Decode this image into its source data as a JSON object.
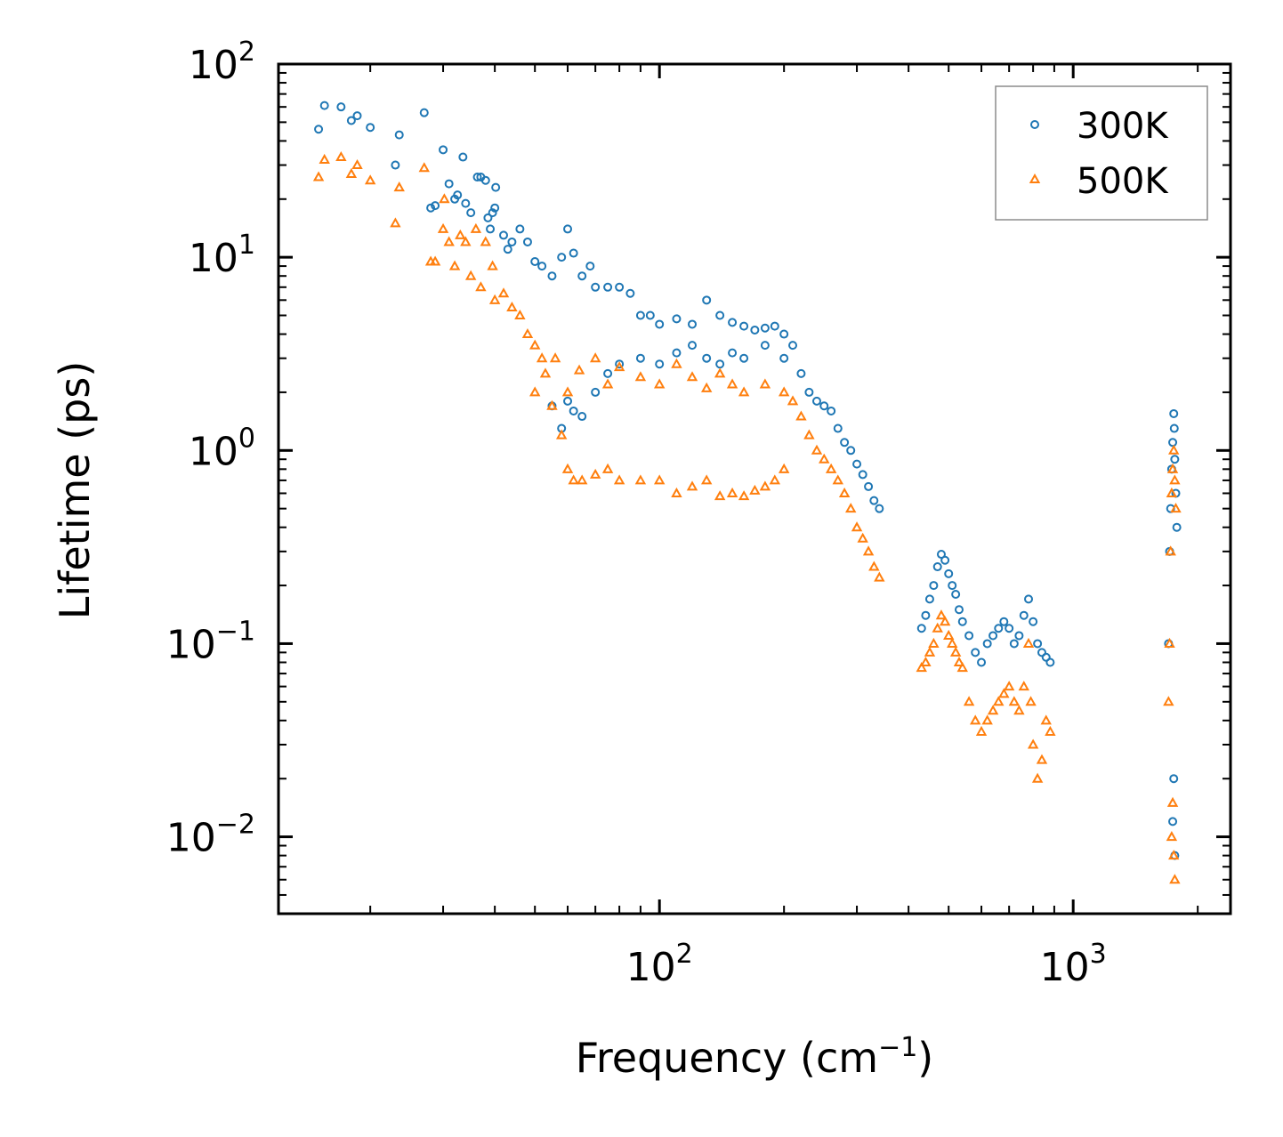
{
  "chart_data": {
    "type": "scatter",
    "title": "",
    "xlabel": {
      "main": "Frequency (cm",
      "sup": "−1",
      "tail": ")"
    },
    "ylabel": "Lifetime (ps)",
    "xscale": "log",
    "yscale": "log",
    "xlim": [
      12,
      2400
    ],
    "ylim": [
      0.004,
      100
    ],
    "legend": {
      "placement": "top-right"
    },
    "x_ticks": [
      {
        "value": 100,
        "base": "10",
        "exp": "2"
      },
      {
        "value": 1000,
        "base": "10",
        "exp": "3"
      }
    ],
    "y_ticks": [
      {
        "value": 0.01,
        "base": "10",
        "exp": "−2"
      },
      {
        "value": 0.1,
        "base": "10",
        "exp": "−1"
      },
      {
        "value": 1,
        "base": "10",
        "exp": "0"
      },
      {
        "value": 10,
        "base": "10",
        "exp": "1"
      },
      {
        "value": 100,
        "base": "10",
        "exp": "2"
      }
    ],
    "series": [
      {
        "name": "300K",
        "marker": "circle",
        "color": "#1f77b4",
        "points": [
          [
            15,
            46
          ],
          [
            15.5,
            61
          ],
          [
            17,
            60
          ],
          [
            18,
            51
          ],
          [
            18.6,
            54
          ],
          [
            20,
            47
          ],
          [
            23,
            30
          ],
          [
            23.5,
            43
          ],
          [
            27,
            56
          ],
          [
            28,
            18
          ],
          [
            28.7,
            18.5
          ],
          [
            30,
            36
          ],
          [
            31,
            24
          ],
          [
            32,
            20
          ],
          [
            32.5,
            21
          ],
          [
            33.5,
            33
          ],
          [
            34,
            19
          ],
          [
            35,
            17
          ],
          [
            36.3,
            26
          ],
          [
            37,
            26
          ],
          [
            38,
            25
          ],
          [
            38.5,
            16
          ],
          [
            39,
            14
          ],
          [
            39.5,
            17
          ],
          [
            40,
            18
          ],
          [
            40.2,
            23
          ],
          [
            42,
            13
          ],
          [
            43,
            11
          ],
          [
            44,
            12
          ],
          [
            46,
            14
          ],
          [
            48,
            12
          ],
          [
            50,
            9.5
          ],
          [
            52,
            9
          ],
          [
            55,
            8
          ],
          [
            58,
            10
          ],
          [
            60,
            14
          ],
          [
            62,
            10.5
          ],
          [
            65,
            8
          ],
          [
            68,
            9
          ],
          [
            70,
            7
          ],
          [
            75,
            7
          ],
          [
            80,
            7
          ],
          [
            85,
            6.5
          ],
          [
            90,
            5
          ],
          [
            95,
            5
          ],
          [
            100,
            4.5
          ],
          [
            110,
            4.8
          ],
          [
            120,
            4.5
          ],
          [
            130,
            6
          ],
          [
            140,
            5
          ],
          [
            150,
            4.6
          ],
          [
            160,
            4.4
          ],
          [
            170,
            4.2
          ],
          [
            180,
            4.3
          ],
          [
            190,
            4.4
          ],
          [
            200,
            4
          ],
          [
            210,
            3.5
          ],
          [
            220,
            2.5
          ],
          [
            230,
            2
          ],
          [
            240,
            1.8
          ],
          [
            250,
            1.7
          ],
          [
            260,
            1.6
          ],
          [
            270,
            1.3
          ],
          [
            280,
            1.1
          ],
          [
            290,
            1
          ],
          [
            300,
            0.85
          ],
          [
            310,
            0.75
          ],
          [
            320,
            0.65
          ],
          [
            330,
            0.55
          ],
          [
            340,
            0.5
          ],
          [
            55,
            1.7
          ],
          [
            58,
            1.3
          ],
          [
            60,
            1.8
          ],
          [
            62,
            1.6
          ],
          [
            65,
            1.5
          ],
          [
            70,
            2
          ],
          [
            75,
            2.5
          ],
          [
            80,
            2.8
          ],
          [
            90,
            3
          ],
          [
            100,
            2.8
          ],
          [
            110,
            3.2
          ],
          [
            120,
            3.5
          ],
          [
            130,
            3
          ],
          [
            140,
            2.8
          ],
          [
            150,
            3.2
          ],
          [
            160,
            3
          ],
          [
            180,
            3.5
          ],
          [
            200,
            3
          ],
          [
            430,
            0.12
          ],
          [
            440,
            0.14
          ],
          [
            450,
            0.17
          ],
          [
            460,
            0.2
          ],
          [
            470,
            0.25
          ],
          [
            480,
            0.29
          ],
          [
            490,
            0.27
          ],
          [
            500,
            0.23
          ],
          [
            510,
            0.2
          ],
          [
            520,
            0.18
          ],
          [
            530,
            0.15
          ],
          [
            540,
            0.13
          ],
          [
            560,
            0.11
          ],
          [
            580,
            0.09
          ],
          [
            600,
            0.08
          ],
          [
            620,
            0.1
          ],
          [
            640,
            0.11
          ],
          [
            660,
            0.12
          ],
          [
            680,
            0.13
          ],
          [
            700,
            0.12
          ],
          [
            720,
            0.1
          ],
          [
            740,
            0.11
          ],
          [
            760,
            0.14
          ],
          [
            780,
            0.17
          ],
          [
            800,
            0.13
          ],
          [
            820,
            0.1
          ],
          [
            840,
            0.09
          ],
          [
            860,
            0.085
          ],
          [
            880,
            0.08
          ],
          [
            1700,
            0.1
          ],
          [
            1710,
            0.3
          ],
          [
            1720,
            0.5
          ],
          [
            1730,
            0.8
          ],
          [
            1740,
            1.1
          ],
          [
            1750,
            1.55
          ],
          [
            1755,
            1.3
          ],
          [
            1760,
            0.9
          ],
          [
            1770,
            0.6
          ],
          [
            1780,
            0.4
          ],
          [
            1750,
            0.02
          ],
          [
            1740,
            0.012
          ],
          [
            1760,
            0.008
          ]
        ]
      },
      {
        "name": "500K",
        "marker": "triangle",
        "color": "#ff7f0e",
        "points": [
          [
            15,
            26
          ],
          [
            15.5,
            32
          ],
          [
            17,
            33
          ],
          [
            18,
            27
          ],
          [
            18.6,
            30
          ],
          [
            20,
            25
          ],
          [
            23,
            15
          ],
          [
            23.5,
            23
          ],
          [
            27,
            29
          ],
          [
            28,
            9.5
          ],
          [
            28.7,
            9.5
          ],
          [
            30,
            14
          ],
          [
            30.2,
            20
          ],
          [
            31,
            12
          ],
          [
            32,
            9
          ],
          [
            33,
            13
          ],
          [
            34,
            12
          ],
          [
            35,
            8
          ],
          [
            36,
            14
          ],
          [
            37,
            7
          ],
          [
            38,
            12
          ],
          [
            39.5,
            9
          ],
          [
            40,
            6
          ],
          [
            42,
            6.5
          ],
          [
            44,
            5.5
          ],
          [
            46,
            5
          ],
          [
            48,
            4
          ],
          [
            50,
            3.5
          ],
          [
            52,
            3
          ],
          [
            55,
            1.7
          ],
          [
            58,
            1.2
          ],
          [
            60,
            0.8
          ],
          [
            62,
            0.7
          ],
          [
            65,
            0.7
          ],
          [
            70,
            0.75
          ],
          [
            75,
            0.8
          ],
          [
            80,
            0.7
          ],
          [
            90,
            0.7
          ],
          [
            100,
            0.7
          ],
          [
            110,
            0.6
          ],
          [
            120,
            0.65
          ],
          [
            130,
            0.7
          ],
          [
            140,
            0.58
          ],
          [
            150,
            0.6
          ],
          [
            160,
            0.58
          ],
          [
            170,
            0.62
          ],
          [
            180,
            0.65
          ],
          [
            190,
            0.7
          ],
          [
            200,
            0.8
          ],
          [
            50,
            2
          ],
          [
            53,
            2.5
          ],
          [
            56,
            3
          ],
          [
            60,
            2
          ],
          [
            64,
            2.6
          ],
          [
            70,
            3
          ],
          [
            75,
            2.2
          ],
          [
            80,
            2.7
          ],
          [
            90,
            2.4
          ],
          [
            100,
            2.2
          ],
          [
            110,
            2.8
          ],
          [
            120,
            2.4
          ],
          [
            130,
            2.1
          ],
          [
            140,
            2.5
          ],
          [
            150,
            2.2
          ],
          [
            160,
            2
          ],
          [
            180,
            2.2
          ],
          [
            200,
            2
          ],
          [
            210,
            1.8
          ],
          [
            220,
            1.5
          ],
          [
            230,
            1.2
          ],
          [
            240,
            1
          ],
          [
            250,
            0.9
          ],
          [
            260,
            0.8
          ],
          [
            270,
            0.7
          ],
          [
            280,
            0.6
          ],
          [
            290,
            0.5
          ],
          [
            300,
            0.4
          ],
          [
            310,
            0.35
          ],
          [
            320,
            0.3
          ],
          [
            330,
            0.25
          ],
          [
            340,
            0.22
          ],
          [
            430,
            0.075
          ],
          [
            440,
            0.08
          ],
          [
            450,
            0.09
          ],
          [
            460,
            0.1
          ],
          [
            470,
            0.12
          ],
          [
            480,
            0.14
          ],
          [
            490,
            0.13
          ],
          [
            500,
            0.11
          ],
          [
            510,
            0.1
          ],
          [
            520,
            0.09
          ],
          [
            530,
            0.08
          ],
          [
            540,
            0.075
          ],
          [
            560,
            0.05
          ],
          [
            580,
            0.04
          ],
          [
            600,
            0.035
          ],
          [
            620,
            0.04
          ],
          [
            640,
            0.045
          ],
          [
            660,
            0.05
          ],
          [
            680,
            0.055
          ],
          [
            700,
            0.06
          ],
          [
            720,
            0.05
          ],
          [
            740,
            0.045
          ],
          [
            760,
            0.06
          ],
          [
            780,
            0.1
          ],
          [
            790,
            0.05
          ],
          [
            800,
            0.03
          ],
          [
            820,
            0.02
          ],
          [
            840,
            0.025
          ],
          [
            860,
            0.04
          ],
          [
            880,
            0.035
          ],
          [
            1700,
            0.05
          ],
          [
            1710,
            0.1
          ],
          [
            1720,
            0.3
          ],
          [
            1730,
            0.6
          ],
          [
            1740,
            0.8
          ],
          [
            1750,
            1
          ],
          [
            1760,
            0.7
          ],
          [
            1770,
            0.5
          ],
          [
            1740,
            0.015
          ],
          [
            1750,
            0.008
          ],
          [
            1760,
            0.006
          ],
          [
            1730,
            0.01
          ]
        ]
      }
    ]
  }
}
